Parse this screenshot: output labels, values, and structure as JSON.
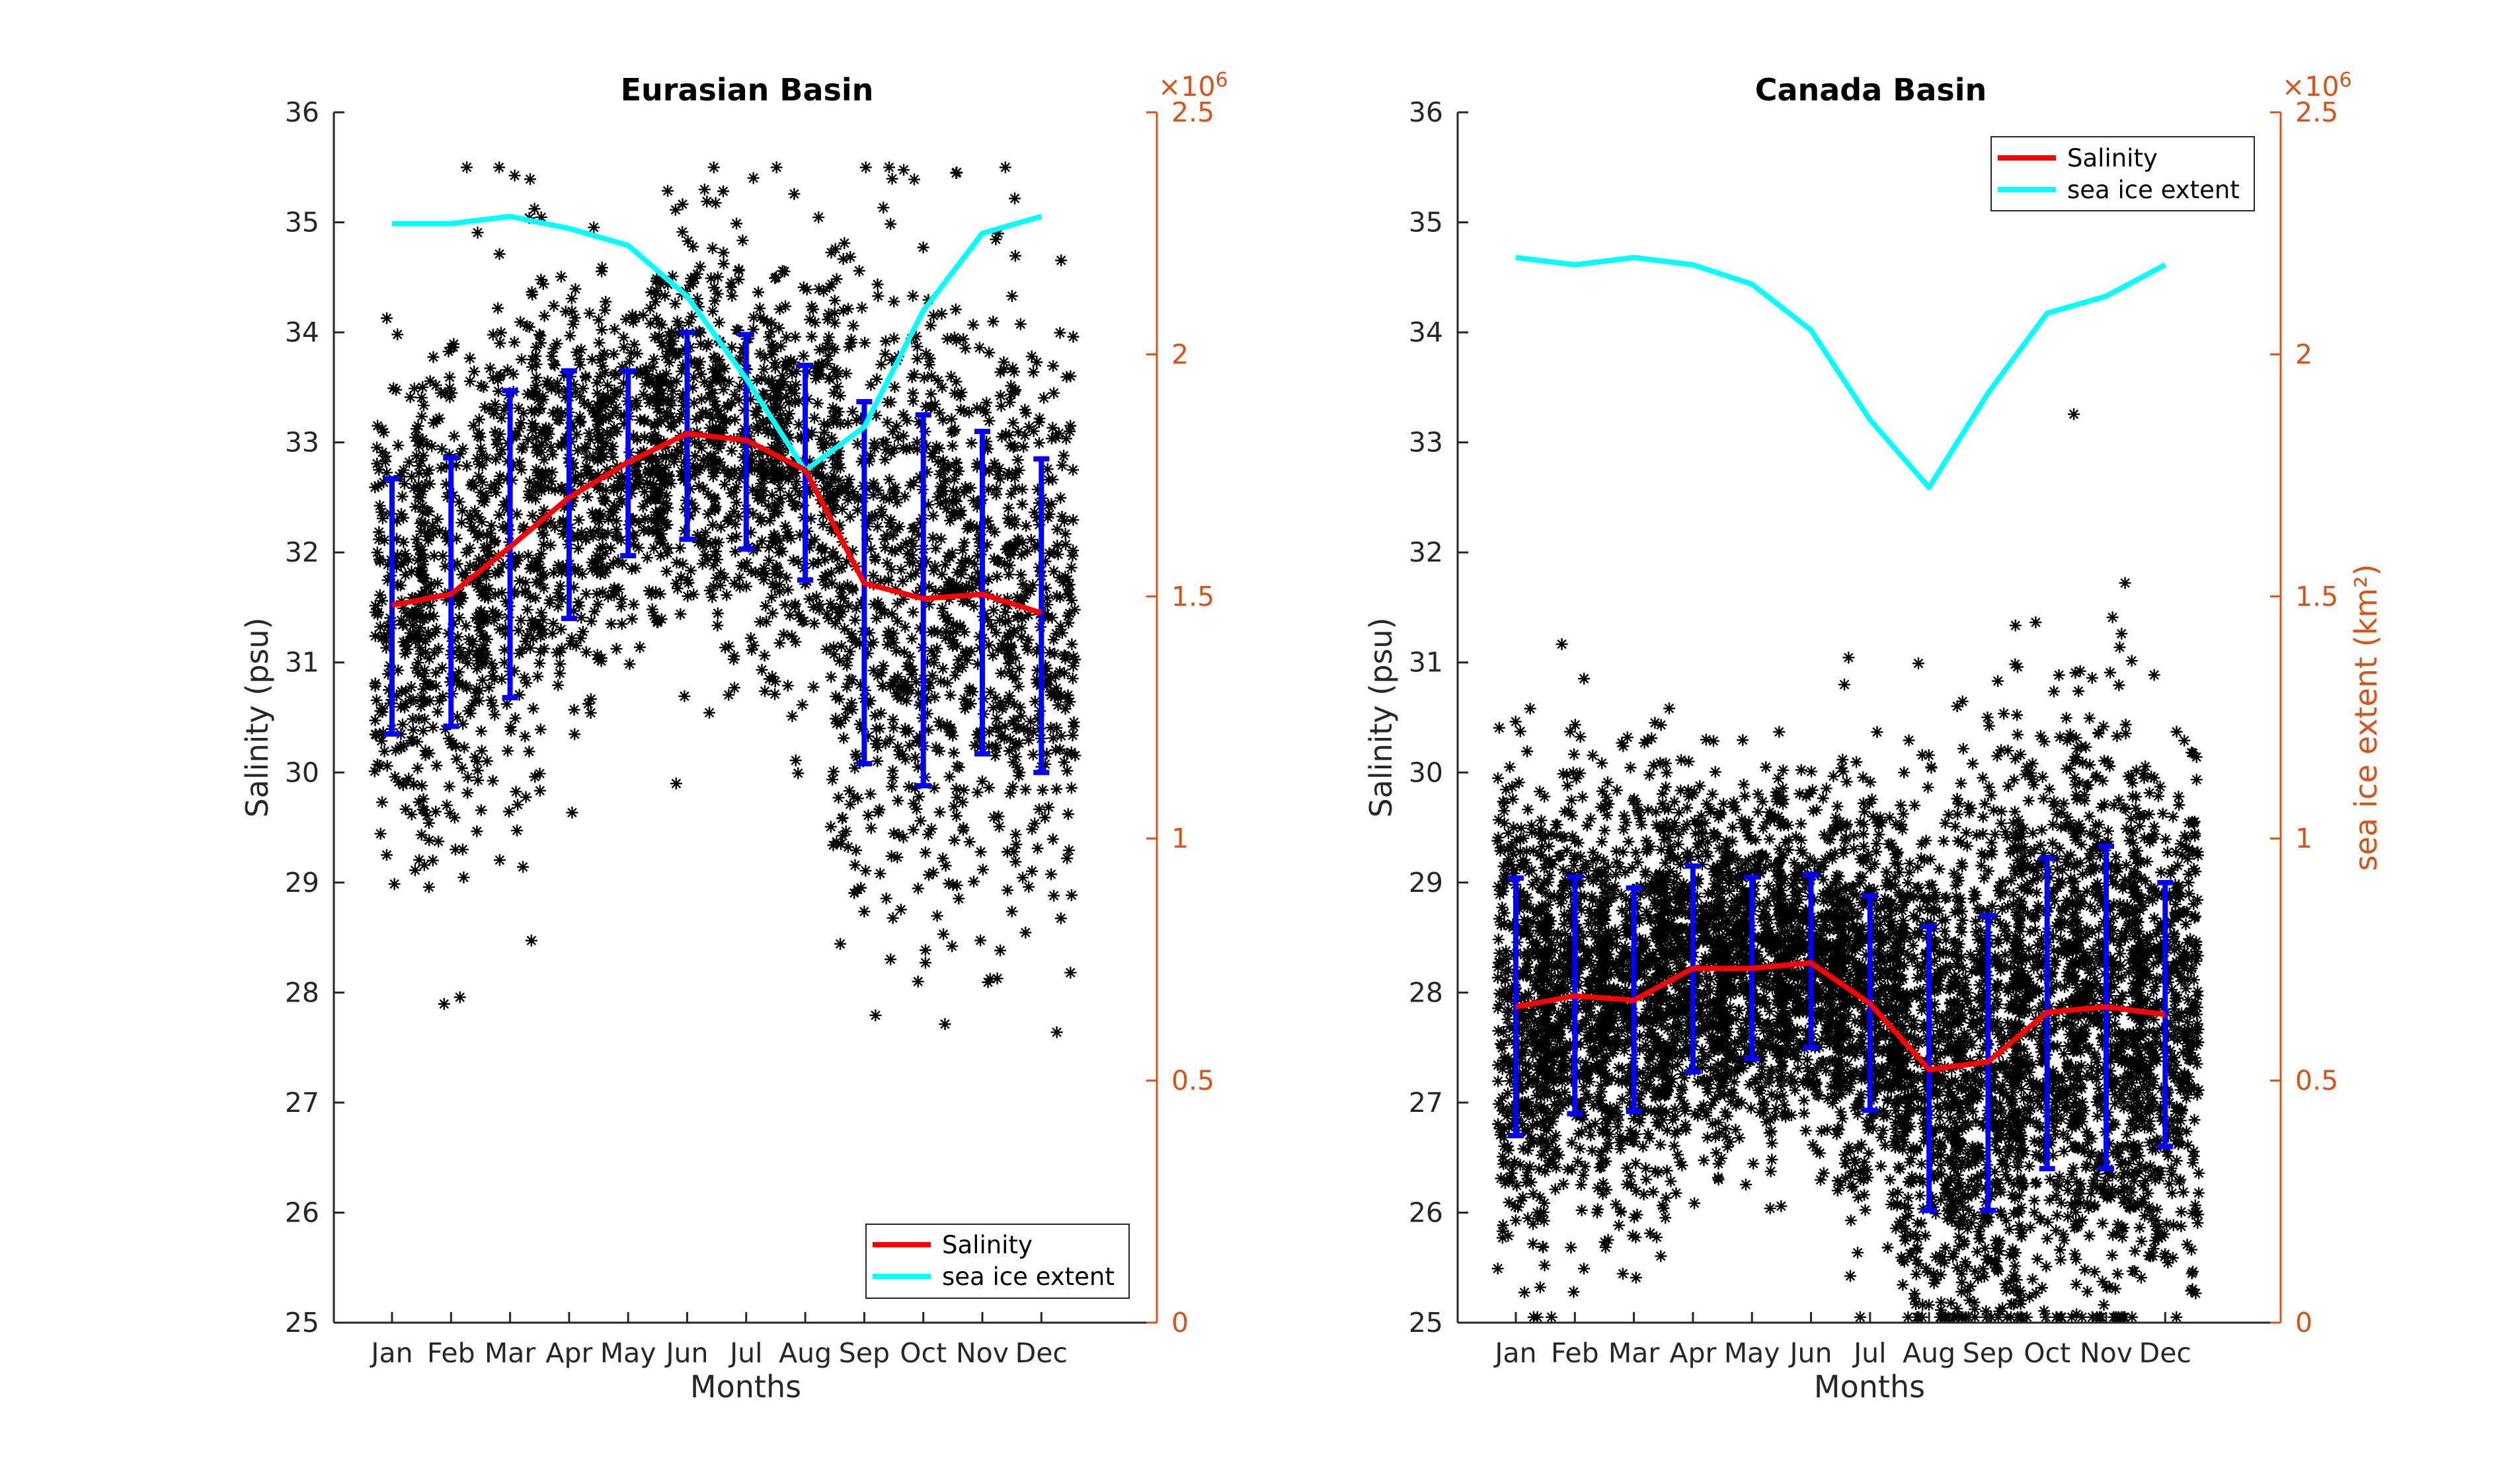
{
  "chart_data": [
    {
      "type": "line",
      "title": "Eurasian Basin",
      "xlabel": "Months",
      "ylabel": "Salinity (psu)",
      "ylabel_right": "",
      "right_axis_exponent": "×10",
      "right_axis_exponent_power": "6",
      "categories": [
        "Jan",
        "Feb",
        "Mar",
        "Apr",
        "May",
        "Jun",
        "Jul",
        "Aug",
        "Sep",
        "Oct",
        "Nov",
        "Dec"
      ],
      "ylim": [
        25,
        36
      ],
      "yticks": [
        "25",
        "26",
        "27",
        "28",
        "29",
        "30",
        "31",
        "32",
        "33",
        "34",
        "35",
        "36"
      ],
      "ylim_right": [
        0,
        2500000
      ],
      "yticks_right": [
        "0",
        "0.5",
        "1",
        "1.5",
        "2",
        "2.5"
      ],
      "series": [
        {
          "name": "Salinity",
          "axis": "left",
          "color": "#ff0000",
          "values": [
            31.52,
            31.62,
            32.05,
            32.5,
            32.82,
            33.08,
            33.02,
            32.75,
            31.72,
            31.58,
            31.62,
            31.45
          ],
          "error_low": [
            30.35,
            30.42,
            30.68,
            31.4,
            31.97,
            32.12,
            32.03,
            31.75,
            30.08,
            29.88,
            30.17,
            30.0
          ],
          "error_high": [
            32.67,
            32.86,
            33.47,
            33.65,
            33.65,
            34.0,
            33.98,
            33.7,
            33.37,
            33.25,
            33.1,
            32.85
          ]
        },
        {
          "name": "sea ice extent",
          "axis": "right",
          "color": "#00ffff",
          "values": [
            2270000,
            2270000,
            2285000,
            2260000,
            2225000,
            2120000,
            1950000,
            1760000,
            1850000,
            2090000,
            2250000,
            2285000
          ]
        }
      ],
      "legend_position": "bottom-right",
      "scatter_color": "#000000",
      "error_bar_color": "#0000ff"
    },
    {
      "type": "line",
      "title": "Canada Basin",
      "xlabel": "Months",
      "ylabel": "Salinity (psu)",
      "ylabel_right": "sea ice extent (km²)",
      "right_axis_exponent": "×10",
      "right_axis_exponent_power": "6",
      "categories": [
        "Jan",
        "Feb",
        "Mar",
        "Apr",
        "May",
        "Jun",
        "Jul",
        "Aug",
        "Sep",
        "Oct",
        "Nov",
        "Dec"
      ],
      "ylim": [
        25,
        36
      ],
      "yticks": [
        "25",
        "26",
        "27",
        "28",
        "29",
        "30",
        "31",
        "32",
        "33",
        "34",
        "35",
        "36"
      ],
      "ylim_right": [
        0,
        2500000
      ],
      "yticks_right": [
        "0",
        "0.5",
        "1",
        "1.5",
        "2",
        "2.5"
      ],
      "series": [
        {
          "name": "Salinity",
          "axis": "left",
          "color": "#ff0000",
          "values": [
            27.87,
            27.97,
            27.93,
            28.22,
            28.22,
            28.27,
            27.9,
            27.3,
            27.37,
            27.82,
            27.87,
            27.8
          ],
          "error_low": [
            26.7,
            26.9,
            26.92,
            27.28,
            27.4,
            27.5,
            26.93,
            26.02,
            26.02,
            26.4,
            26.4,
            26.6
          ],
          "error_high": [
            29.04,
            29.05,
            28.95,
            29.15,
            29.05,
            29.07,
            28.88,
            28.6,
            28.7,
            29.22,
            29.33,
            29.0
          ]
        },
        {
          "name": "sea ice extent",
          "axis": "right",
          "color": "#00ffff",
          "values": [
            2200000,
            2185000,
            2200000,
            2185000,
            2145000,
            2050000,
            1865000,
            1725000,
            1920000,
            2085000,
            2120000,
            2185000
          ]
        }
      ],
      "legend_position": "top-right",
      "scatter_color": "#000000",
      "error_bar_color": "#0000ff"
    }
  ]
}
